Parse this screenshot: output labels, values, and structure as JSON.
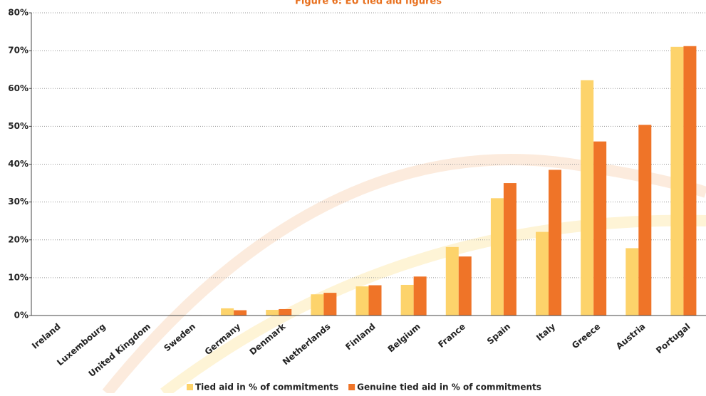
{
  "chart_data": {
    "type": "bar",
    "title": "Figure 6: EU tied aid figures",
    "categories": [
      "Ireland",
      "Luxembourg",
      "United Kingdom",
      "Sweden",
      "Germany",
      "Denmark",
      "Netherlands",
      "Finland",
      "Belgium",
      "France",
      "Spain",
      "Italy",
      "Greece",
      "Austria",
      "Portugal"
    ],
    "series": [
      {
        "name": "Tied aid in % of commitments",
        "color": "#fdd36b",
        "values": [
          0,
          0,
          0,
          0,
          1.9,
          1.5,
          5.6,
          7.7,
          8.1,
          18.1,
          31.0,
          22.1,
          62.2,
          17.8,
          71.0
        ]
      },
      {
        "name": "Genuine tied aid in % of commitments",
        "color": "#ef7428",
        "values": [
          0,
          0,
          0,
          0.1,
          1.4,
          1.7,
          6.0,
          8.0,
          10.3,
          15.6,
          35.0,
          38.5,
          46.0,
          50.4,
          71.2
        ]
      }
    ],
    "ylim": [
      0,
      80
    ],
    "yticks": [
      {
        "value": 0,
        "label": "0%"
      },
      {
        "value": 10,
        "label": "10%"
      },
      {
        "value": 20,
        "label": "20%"
      },
      {
        "value": 30,
        "label": "30%"
      },
      {
        "value": 40,
        "label": "40%"
      },
      {
        "value": 50,
        "label": "50%"
      },
      {
        "value": 60,
        "label": "60%"
      },
      {
        "value": 70,
        "label": "70%"
      },
      {
        "value": 80,
        "label": "80%"
      }
    ],
    "grid": true
  }
}
